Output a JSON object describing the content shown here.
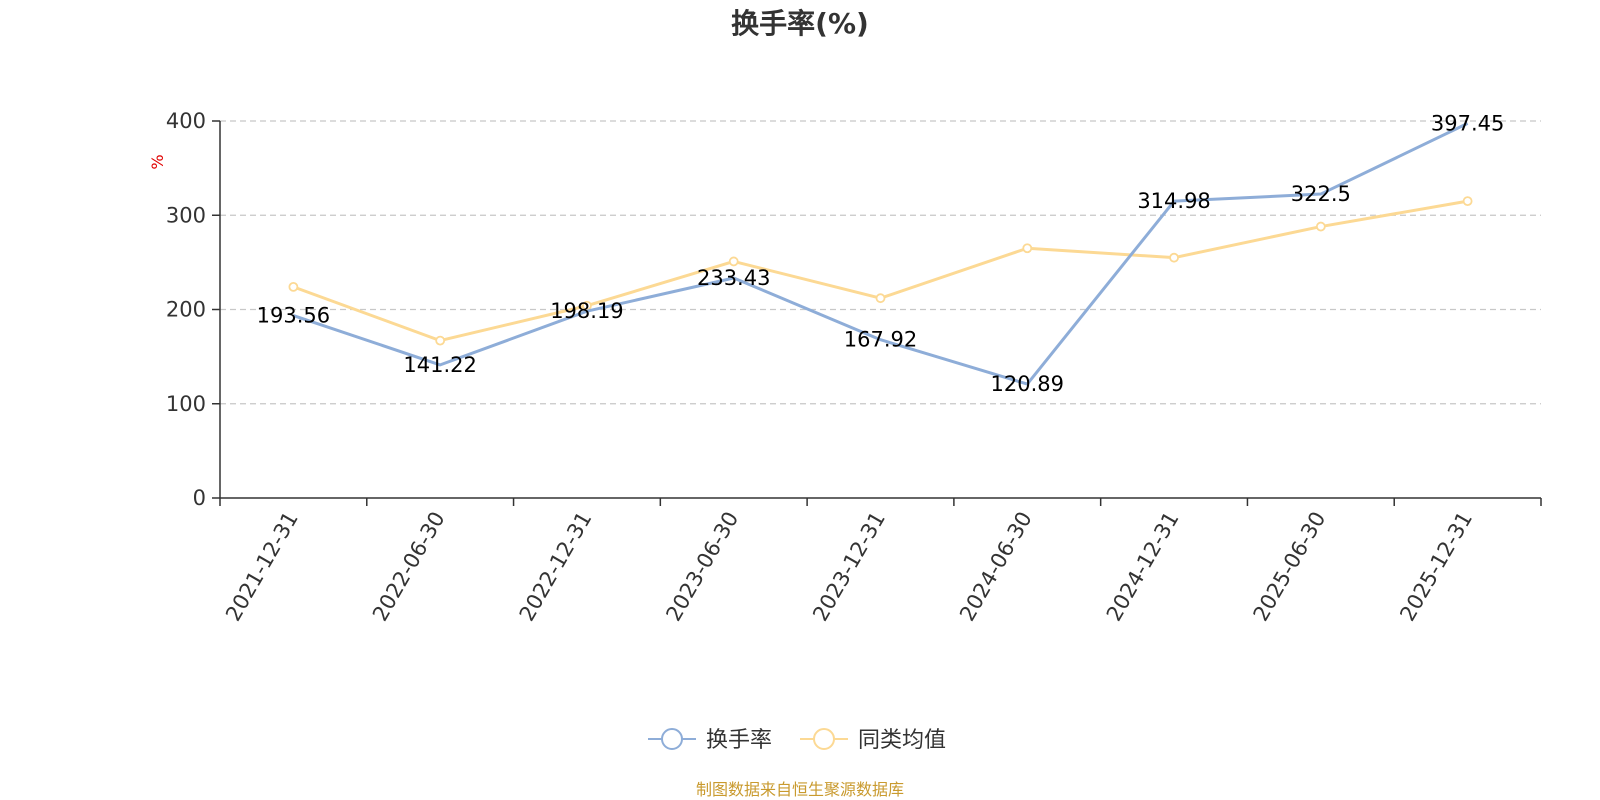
{
  "chart_data": {
    "type": "line",
    "title": "换手率(%)",
    "ylabel": "%",
    "xlabel": "",
    "ylim": [
      0,
      400
    ],
    "yticks": [
      0,
      100,
      200,
      300,
      400
    ],
    "grid": true,
    "categories": [
      "2021-12-31",
      "2022-06-30",
      "2022-12-31",
      "2023-06-30",
      "2023-12-31",
      "2024-06-30",
      "2024-12-31",
      "2025-06-30",
      "2025-12-31"
    ],
    "series": [
      {
        "name": "换手率",
        "color": "#8eadd8",
        "values": [
          193.56,
          141.22,
          198.19,
          233.43,
          167.92,
          120.89,
          314.98,
          322.5,
          397.45
        ],
        "labels": [
          "193.56",
          "141.22",
          "198.19",
          "233.43",
          "167.92",
          "120.89",
          "314.98",
          "322.5",
          "397.45"
        ]
      },
      {
        "name": "同类均值",
        "color": "#fcd994",
        "values": [
          224,
          167,
          204,
          251,
          212,
          265,
          255,
          288,
          315
        ]
      }
    ],
    "legend_position": "bottom",
    "source": "制图数据来自恒生聚源数据库"
  }
}
